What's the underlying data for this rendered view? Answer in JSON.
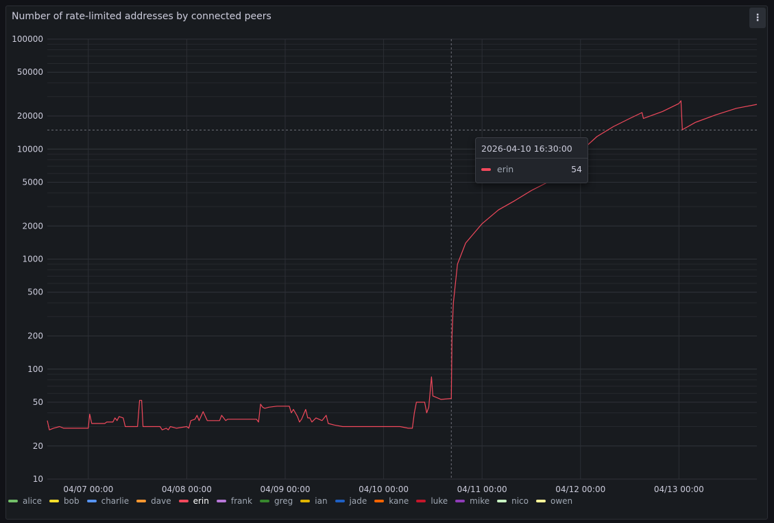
{
  "panel": {
    "title": "Number of rate-limited addresses by connected peers",
    "menu_icon": "kebab-menu-icon"
  },
  "tooltip": {
    "time": "2026-04-10 16:30:00",
    "series": "erin",
    "value": "54",
    "color": "#f2495c"
  },
  "legend": [
    {
      "name": "alice",
      "color": "#73bf69"
    },
    {
      "name": "bob",
      "color": "#fade2a"
    },
    {
      "name": "charlie",
      "color": "#5794f2"
    },
    {
      "name": "dave",
      "color": "#ff9830"
    },
    {
      "name": "erin",
      "color": "#f2495c"
    },
    {
      "name": "frank",
      "color": "#b877d9"
    },
    {
      "name": "greg",
      "color": "#37872d"
    },
    {
      "name": "ian",
      "color": "#e0b400"
    },
    {
      "name": "jade",
      "color": "#1f60c4"
    },
    {
      "name": "kane",
      "color": "#fa6400"
    },
    {
      "name": "luke",
      "color": "#c4162a"
    },
    {
      "name": "mike",
      "color": "#8f3bb8"
    },
    {
      "name": "nico",
      "color": "#c8f2c2"
    },
    {
      "name": "owen",
      "color": "#fff899"
    }
  ],
  "chart_data": {
    "type": "line",
    "title": "Number of rate-limited addresses by connected peers",
    "y_scale": "log",
    "ylim": [
      10,
      100000
    ],
    "y_ticks": [
      10,
      20,
      50,
      100,
      200,
      500,
      1000,
      2000,
      5000,
      10000,
      20000,
      50000,
      100000
    ],
    "x_ticks": [
      "04/07 00:00",
      "04/08 00:00",
      "04/09 00:00",
      "04/10 00:00",
      "04/11 00:00",
      "04/12 00:00",
      "04/13 00:00"
    ],
    "xlim": [
      "2026-04-06 14:00",
      "2026-04-13 19:00"
    ],
    "grid": true,
    "legend_position": "bottom",
    "cursor_time": "2026-04-10 16:30",
    "series": [
      {
        "name": "erin",
        "color": "#f2495c",
        "points": [
          [
            "2026-04-06 14:00",
            34
          ],
          [
            "2026-04-06 14:30",
            28
          ],
          [
            "2026-04-06 15:30",
            29
          ],
          [
            "2026-04-06 17:00",
            30
          ],
          [
            "2026-04-06 18:00",
            29
          ],
          [
            "2026-04-06 20:00",
            29
          ],
          [
            "2026-04-07 00:00",
            29
          ],
          [
            "2026-04-07 00:20",
            39
          ],
          [
            "2026-04-07 00:50",
            32
          ],
          [
            "2026-04-07 04:00",
            32
          ],
          [
            "2026-04-07 04:30",
            33
          ],
          [
            "2026-04-07 06:00",
            33
          ],
          [
            "2026-04-07 06:30",
            36
          ],
          [
            "2026-04-07 07:00",
            34
          ],
          [
            "2026-04-07 07:30",
            37
          ],
          [
            "2026-04-07 08:30",
            36
          ],
          [
            "2026-04-07 09:00",
            30
          ],
          [
            "2026-04-07 12:00",
            30
          ],
          [
            "2026-04-07 12:30",
            52
          ],
          [
            "2026-04-07 13:00",
            52
          ],
          [
            "2026-04-07 13:20",
            30
          ],
          [
            "2026-04-07 17:30",
            30
          ],
          [
            "2026-04-07 18:00",
            28
          ],
          [
            "2026-04-07 19:00",
            29
          ],
          [
            "2026-04-07 19:30",
            28
          ],
          [
            "2026-04-07 20:00",
            30
          ],
          [
            "2026-04-07 21:30",
            29
          ],
          [
            "2026-04-08 00:00",
            30
          ],
          [
            "2026-04-08 00:30",
            29
          ],
          [
            "2026-04-08 01:00",
            34
          ],
          [
            "2026-04-08 02:00",
            35
          ],
          [
            "2026-04-08 02:30",
            38
          ],
          [
            "2026-04-08 03:00",
            34
          ],
          [
            "2026-04-08 04:00",
            41
          ],
          [
            "2026-04-08 05:00",
            34
          ],
          [
            "2026-04-08 08:00",
            34
          ],
          [
            "2026-04-08 08:30",
            38
          ],
          [
            "2026-04-08 09:30",
            34
          ],
          [
            "2026-04-08 10:00",
            35
          ],
          [
            "2026-04-08 17:00",
            35
          ],
          [
            "2026-04-08 17:30",
            33
          ],
          [
            "2026-04-08 18:00",
            48
          ],
          [
            "2026-04-08 18:30",
            45
          ],
          [
            "2026-04-08 19:00",
            44
          ],
          [
            "2026-04-08 20:00",
            45
          ],
          [
            "2026-04-08 22:00",
            46
          ],
          [
            "2026-04-09 01:00",
            46
          ],
          [
            "2026-04-09 01:30",
            40
          ],
          [
            "2026-04-09 02:00",
            43
          ],
          [
            "2026-04-09 03:00",
            37
          ],
          [
            "2026-04-09 03:30",
            33
          ],
          [
            "2026-04-09 04:00",
            35
          ],
          [
            "2026-04-09 05:00",
            43
          ],
          [
            "2026-04-09 05:30",
            36
          ],
          [
            "2026-04-09 06:00",
            36
          ],
          [
            "2026-04-09 06:30",
            33
          ],
          [
            "2026-04-09 07:30",
            36
          ],
          [
            "2026-04-09 09:00",
            34
          ],
          [
            "2026-04-09 10:00",
            38
          ],
          [
            "2026-04-09 10:30",
            32
          ],
          [
            "2026-04-09 12:00",
            31
          ],
          [
            "2026-04-09 14:00",
            30
          ],
          [
            "2026-04-09 16:00",
            30
          ],
          [
            "2026-04-09 18:00",
            30
          ],
          [
            "2026-04-09 20:00",
            30
          ],
          [
            "2026-04-09 23:00",
            30
          ],
          [
            "2026-04-10 02:00",
            30
          ],
          [
            "2026-04-10 04:00",
            30
          ],
          [
            "2026-04-10 06:00",
            29
          ],
          [
            "2026-04-10 07:00",
            29
          ],
          [
            "2026-04-10 07:30",
            40
          ],
          [
            "2026-04-10 08:00",
            50
          ],
          [
            "2026-04-10 10:00",
            50
          ],
          [
            "2026-04-10 10:30",
            40
          ],
          [
            "2026-04-10 11:00",
            45
          ],
          [
            "2026-04-10 11:40",
            85
          ],
          [
            "2026-04-10 12:00",
            57
          ],
          [
            "2026-04-10 13:00",
            55
          ],
          [
            "2026-04-10 14:00",
            53
          ],
          [
            "2026-04-10 16:30",
            54
          ],
          [
            "2026-04-10 16:40",
            200
          ],
          [
            "2026-04-10 17:00",
            400
          ],
          [
            "2026-04-10 18:00",
            900
          ],
          [
            "2026-04-10 20:00",
            1400
          ],
          [
            "2026-04-11 00:00",
            2100
          ],
          [
            "2026-04-11 04:00",
            2800
          ],
          [
            "2026-04-11 08:00",
            3400
          ],
          [
            "2026-04-11 12:00",
            4200
          ],
          [
            "2026-04-11 16:00",
            5000
          ],
          [
            "2026-04-11 20:00",
            6600
          ],
          [
            "2026-04-12 00:00",
            9500
          ],
          [
            "2026-04-12 04:00",
            13000
          ],
          [
            "2026-04-12 08:00",
            16000
          ],
          [
            "2026-04-12 12:00",
            19000
          ],
          [
            "2026-04-12 15:00",
            21500
          ],
          [
            "2026-04-12 15:20",
            19000
          ],
          [
            "2026-04-12 20:00",
            22000
          ],
          [
            "2026-04-13 00:00",
            26000
          ],
          [
            "2026-04-13 00:30",
            27500
          ],
          [
            "2026-04-13 00:50",
            15000
          ],
          [
            "2026-04-13 04:00",
            17500
          ],
          [
            "2026-04-13 09:00",
            20500
          ],
          [
            "2026-04-13 14:00",
            23500
          ],
          [
            "2026-04-13 19:00",
            25500
          ]
        ]
      }
    ]
  }
}
